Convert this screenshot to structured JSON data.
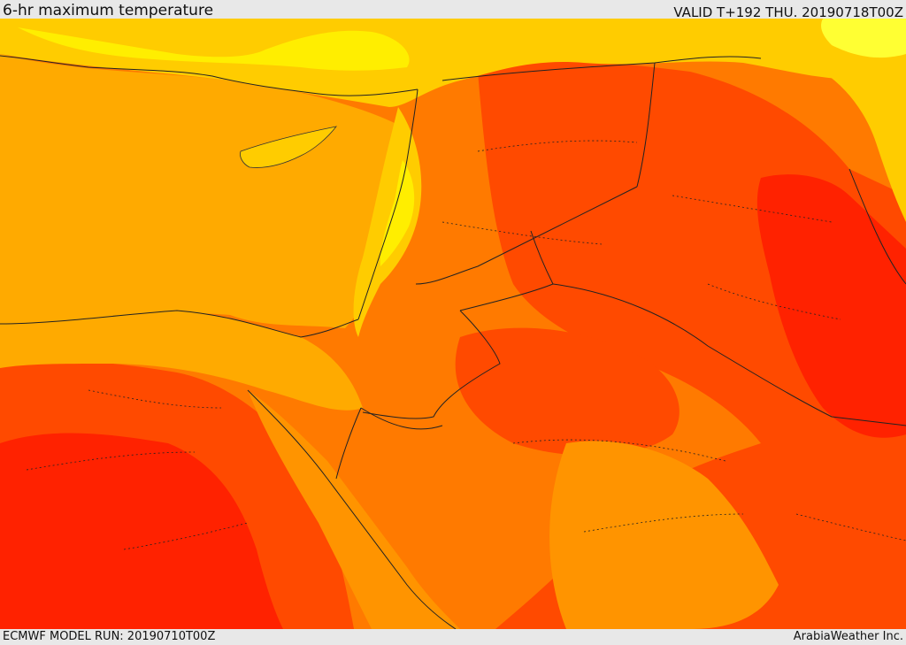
{
  "header": {
    "title": "6-hr maximum temperature",
    "valid": "VALID T+192 THU. 20190718T00Z"
  },
  "footer": {
    "model_run": "ECMWF MODEL RUN: 20190710T00Z",
    "credit": "ArabiaWeather Inc."
  },
  "colors": {
    "very_hot": "#ff2200",
    "hot": "#ff4a00",
    "warm_hot": "#ff7a00",
    "warm": "#ff9400",
    "sea_mild": "#ffaa00",
    "mild": "#ffcc00",
    "cool": "#ffee00",
    "coolest": "#ffff33"
  }
}
